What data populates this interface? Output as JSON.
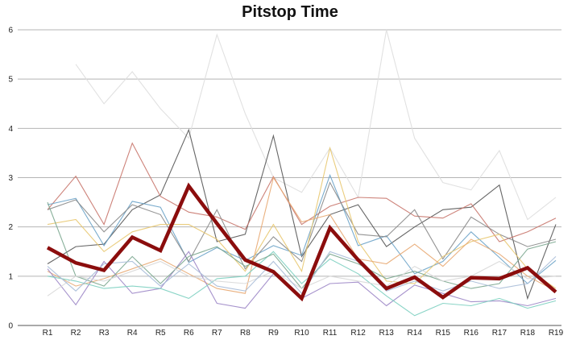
{
  "chart_data": {
    "type": "line",
    "title": "Pitstop Time",
    "xlabel": "",
    "ylabel": "",
    "ylim": [
      0,
      6
    ],
    "yticks": [
      "0",
      "1",
      "2",
      "3",
      "4",
      "5",
      "6"
    ],
    "grid": true,
    "legend": "none",
    "categories": [
      "R1",
      "R2",
      "R3",
      "R4",
      "R5",
      "R6",
      "R7",
      "R8",
      "R9",
      "R10",
      "R11",
      "R12",
      "R13",
      "R14",
      "R15",
      "R16",
      "R17",
      "R18",
      "R19"
    ],
    "highlight_color": "#8b0d0d",
    "series": [
      {
        "color": "#8b0d0d",
        "highlight": true,
        "values": [
          1.58,
          1.27,
          1.12,
          1.79,
          1.52,
          2.83,
          2.07,
          1.33,
          1.09,
          0.55,
          1.98,
          1.33,
          0.75,
          0.98,
          0.57,
          0.97,
          0.95,
          1.17,
          0.68
        ]
      },
      {
        "color": "#dedede",
        "values": [
          null,
          5.3,
          4.5,
          5.15,
          4.4,
          3.8,
          5.9,
          4.3,
          3.0,
          2.7,
          3.6,
          2.6,
          6.0,
          3.8,
          2.9,
          2.75,
          3.55,
          2.15,
          2.6
        ]
      },
      {
        "color": "#555555",
        "values": [
          1.25,
          1.6,
          1.65,
          2.35,
          2.65,
          3.97,
          1.7,
          1.85,
          3.85,
          1.4,
          2.25,
          2.45,
          1.6,
          2.0,
          2.35,
          2.4,
          2.85,
          0.55,
          2.05
        ]
      },
      {
        "color": "#c8746a",
        "values": [
          2.35,
          3.03,
          2.05,
          3.7,
          2.62,
          2.3,
          2.2,
          1.95,
          3.02,
          2.05,
          2.42,
          2.6,
          2.58,
          2.22,
          2.18,
          2.47,
          1.7,
          1.9,
          2.18
        ]
      },
      {
        "color": "#6ba3c8",
        "values": [
          2.45,
          2.58,
          1.62,
          2.52,
          2.4,
          1.28,
          1.58,
          1.32,
          1.62,
          1.42,
          3.05,
          1.62,
          1.82,
          1.05,
          1.3,
          1.9,
          1.38,
          0.85,
          1.32
        ]
      },
      {
        "color": "#8a8a8a",
        "values": [
          2.35,
          2.55,
          1.9,
          2.45,
          2.25,
          1.3,
          2.35,
          1.15,
          1.8,
          1.3,
          2.9,
          1.85,
          1.8,
          2.35,
          1.35,
          2.2,
          1.85,
          1.6,
          1.75
        ]
      },
      {
        "color": "#e8c870",
        "values": [
          2.05,
          2.15,
          1.5,
          1.9,
          2.05,
          2.05,
          1.75,
          1.1,
          2.05,
          1.1,
          3.6,
          1.7,
          0.9,
          0.85,
          1.4,
          1.7,
          1.85,
          1.15,
          0.75
        ]
      },
      {
        "color": "#e8a872",
        "values": [
          1.1,
          0.8,
          0.95,
          1.15,
          1.35,
          1.05,
          0.75,
          0.65,
          3.0,
          2.1,
          2.25,
          1.35,
          1.25,
          1.65,
          1.2,
          1.75,
          1.45,
          1.0,
          0.7
        ]
      },
      {
        "color": "#9c86c6",
        "values": [
          1.15,
          0.42,
          1.3,
          0.65,
          0.75,
          1.5,
          0.45,
          0.35,
          1.05,
          0.55,
          0.85,
          0.88,
          0.4,
          0.82,
          0.65,
          0.48,
          0.5,
          0.4,
          0.55
        ]
      },
      {
        "color": "#7ccfc0",
        "values": [
          1.0,
          0.9,
          0.75,
          0.8,
          0.75,
          0.55,
          0.95,
          1.0,
          1.5,
          0.85,
          1.35,
          1.05,
          0.6,
          0.2,
          0.45,
          0.4,
          0.55,
          0.35,
          0.5
        ]
      },
      {
        "color": "#7aa68e",
        "values": [
          2.5,
          1.0,
          0.8,
          1.4,
          0.85,
          1.4,
          1.6,
          1.2,
          1.45,
          0.75,
          1.45,
          1.25,
          0.95,
          1.1,
          0.9,
          0.75,
          0.85,
          1.55,
          1.7
        ]
      },
      {
        "color": "#d8d8d8",
        "values": [
          0.6,
          1.0,
          0.9,
          1.1,
          1.3,
          1.0,
          0.9,
          0.85,
          1.1,
          0.75,
          1.0,
          0.9,
          0.8,
          1.2,
          0.9,
          1.0,
          1.3,
          0.95,
          1.0
        ]
      },
      {
        "color": "#a8bcd8",
        "values": [
          1.2,
          0.7,
          1.25,
          1.3,
          0.8,
          1.25,
          0.8,
          0.7,
          1.3,
          0.65,
          1.5,
          1.3,
          0.7,
          0.9,
          0.7,
          0.9,
          0.75,
          0.85,
          1.4
        ]
      }
    ]
  }
}
